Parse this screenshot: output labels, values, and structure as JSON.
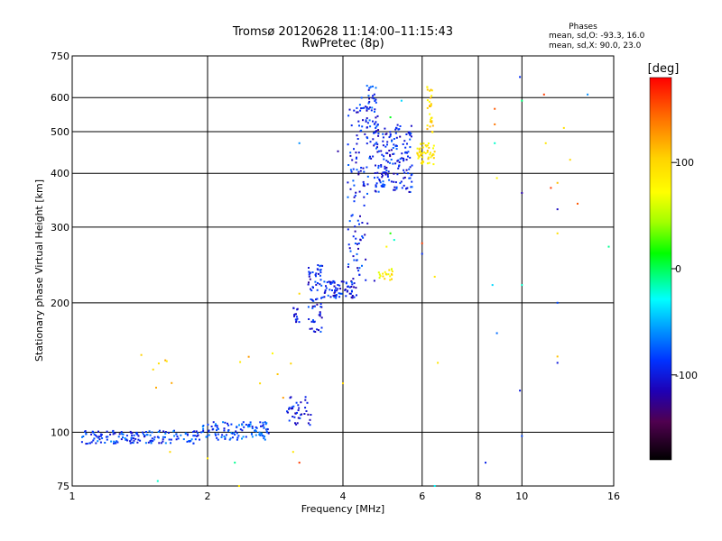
{
  "chart_data": {
    "type": "scatter",
    "title": "Tromsø 20120628 11:14:00–11:15:43",
    "subtitle": "RwPretec (8p)",
    "xlabel": "Frequency [MHz]",
    "ylabel": "Stationary phase Virtual Height [km]",
    "x_scale": "log",
    "y_scale": "log",
    "xlim": [
      1,
      16
    ],
    "ylim": [
      75,
      750
    ],
    "x_ticks": [
      1,
      2,
      4,
      6,
      8,
      10,
      16
    ],
    "x_tick_labels": [
      "1",
      "2",
      "4",
      "6",
      "8",
      "10",
      "16"
    ],
    "y_ticks": [
      75,
      100,
      200,
      300,
      400,
      500,
      600,
      750
    ],
    "y_tick_labels": [
      "75",
      "100",
      "200",
      "300",
      "400",
      "500",
      "600",
      "750"
    ],
    "grid": true,
    "phases_box": {
      "title": "Phases",
      "line_o": "mean, sd,O: -93.3, 16.0",
      "line_x": "mean, sd,X:  90.0, 23.0"
    },
    "colorbar": {
      "label": "[deg]",
      "range": [
        -180,
        180
      ],
      "ticks": [
        100,
        0,
        -100
      ],
      "tick_labels": [
        "100",
        "0",
        "-100"
      ]
    },
    "colors": {
      "axis": "#000000",
      "grid": "#000000",
      "background": "#ffffff"
    },
    "clusters": [
      {
        "phase": -85,
        "freq_range": [
          1.05,
          1.95
        ],
        "height_range": [
          94,
          101
        ],
        "count": 160
      },
      {
        "phase": -80,
        "freq_range": [
          1.95,
          2.75
        ],
        "height_range": [
          96,
          106
        ],
        "count": 110
      },
      {
        "phase": -100,
        "freq_range": [
          3.0,
          3.4
        ],
        "height_range": [
          104,
          121
        ],
        "count": 40
      },
      {
        "phase": -100,
        "freq_range": [
          3.1,
          3.2
        ],
        "height_range": [
          180,
          195
        ],
        "count": 14
      },
      {
        "phase": -98,
        "freq_range": [
          3.35,
          3.6
        ],
        "height_range": [
          170,
          245
        ],
        "count": 70
      },
      {
        "phase": -95,
        "freq_range": [
          3.6,
          4.3
        ],
        "height_range": [
          205,
          225
        ],
        "count": 70
      },
      {
        "phase": -95,
        "freq_range": [
          4.1,
          4.55
        ],
        "height_range": [
          225,
          600
        ],
        "count": 110
      },
      {
        "phase": -90,
        "freq_range": [
          4.5,
          4.8
        ],
        "height_range": [
          430,
          640
        ],
        "count": 60
      },
      {
        "phase": -95,
        "freq_range": [
          4.7,
          5.7
        ],
        "height_range": [
          360,
          520
        ],
        "count": 170
      },
      {
        "phase": 90,
        "freq_range": [
          5.8,
          6.4
        ],
        "height_range": [
          420,
          470
        ],
        "count": 50
      },
      {
        "phase": 95,
        "freq_range": [
          6.15,
          6.35
        ],
        "height_range": [
          480,
          660
        ],
        "count": 30
      },
      {
        "phase": 85,
        "freq_range": [
          4.8,
          5.2
        ],
        "height_range": [
          225,
          240
        ],
        "count": 20
      },
      {
        "phase": 100,
        "freq_range": [
          1.4,
          3.1
        ],
        "height_range": [
          120,
          160
        ],
        "count": 14
      }
    ],
    "scattered_points": [
      {
        "x": 8.7,
        "y": 565,
        "phase": 150
      },
      {
        "x": 8.7,
        "y": 520,
        "phase": 140
      },
      {
        "x": 8.7,
        "y": 470,
        "phase": -20
      },
      {
        "x": 8.8,
        "y": 390,
        "phase": 80
      },
      {
        "x": 8.6,
        "y": 220,
        "phase": -40
      },
      {
        "x": 8.8,
        "y": 170,
        "phase": -70
      },
      {
        "x": 8.3,
        "y": 85,
        "phase": -95
      },
      {
        "x": 9.9,
        "y": 670,
        "phase": -90
      },
      {
        "x": 10.0,
        "y": 590,
        "phase": -5
      },
      {
        "x": 10.0,
        "y": 360,
        "phase": -120
      },
      {
        "x": 10.0,
        "y": 220,
        "phase": -20
      },
      {
        "x": 9.9,
        "y": 125,
        "phase": -100
      },
      {
        "x": 10.0,
        "y": 98,
        "phase": -80
      },
      {
        "x": 11.2,
        "y": 610,
        "phase": 160
      },
      {
        "x": 11.3,
        "y": 470,
        "phase": 90
      },
      {
        "x": 11.6,
        "y": 370,
        "phase": 160
      },
      {
        "x": 12.0,
        "y": 380,
        "phase": 110
      },
      {
        "x": 12.0,
        "y": 330,
        "phase": -110
      },
      {
        "x": 12.0,
        "y": 290,
        "phase": 95
      },
      {
        "x": 12.0,
        "y": 200,
        "phase": -80
      },
      {
        "x": 12.0,
        "y": 150,
        "phase": 110
      },
      {
        "x": 12.0,
        "y": 145,
        "phase": -100
      },
      {
        "x": 12.4,
        "y": 510,
        "phase": 95
      },
      {
        "x": 12.8,
        "y": 430,
        "phase": 100
      },
      {
        "x": 13.3,
        "y": 340,
        "phase": 150
      },
      {
        "x": 14.0,
        "y": 610,
        "phase": -60
      },
      {
        "x": 15.6,
        "y": 270,
        "phase": -10
      },
      {
        "x": 6.0,
        "y": 275,
        "phase": 160
      },
      {
        "x": 6.0,
        "y": 260,
        "phase": -90
      },
      {
        "x": 6.4,
        "y": 230,
        "phase": 90
      },
      {
        "x": 6.5,
        "y": 145,
        "phase": 90
      },
      {
        "x": 6.4,
        "y": 75,
        "phase": -30
      },
      {
        "x": 4.0,
        "y": 130,
        "phase": 100
      },
      {
        "x": 3.2,
        "y": 470,
        "phase": -60
      },
      {
        "x": 3.2,
        "y": 210,
        "phase": 100
      },
      {
        "x": 3.9,
        "y": 450,
        "phase": -120
      },
      {
        "x": 3.1,
        "y": 90,
        "phase": 90
      },
      {
        "x": 3.2,
        "y": 85,
        "phase": 160
      },
      {
        "x": 2.0,
        "y": 87,
        "phase": 90
      },
      {
        "x": 2.3,
        "y": 85,
        "phase": -10
      },
      {
        "x": 2.35,
        "y": 75,
        "phase": 90
      },
      {
        "x": 1.65,
        "y": 90,
        "phase": 100
      },
      {
        "x": 1.55,
        "y": 77,
        "phase": -20
      },
      {
        "x": 4.7,
        "y": 225,
        "phase": -110
      },
      {
        "x": 5.2,
        "y": 280,
        "phase": -20
      },
      {
        "x": 5.0,
        "y": 270,
        "phase": 80
      },
      {
        "x": 5.4,
        "y": 590,
        "phase": -40
      },
      {
        "x": 5.1,
        "y": 540,
        "phase": 10
      },
      {
        "x": 5.1,
        "y": 290,
        "phase": 20
      }
    ]
  }
}
